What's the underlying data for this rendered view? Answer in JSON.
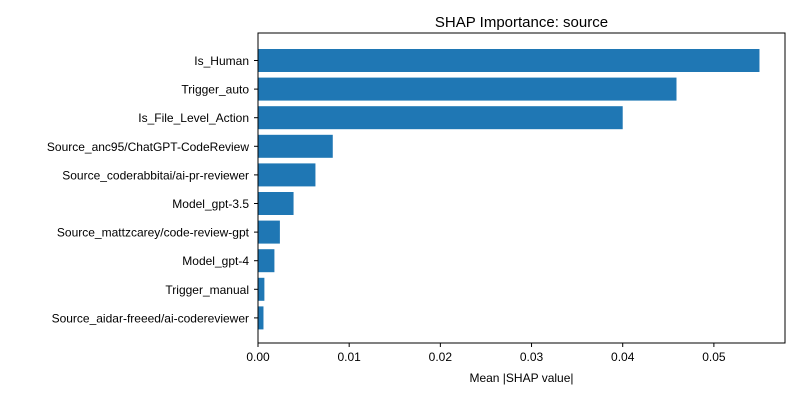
{
  "chart_data": {
    "type": "bar",
    "orientation": "horizontal",
    "title": "SHAP Importance: source",
    "xlabel": "Mean |SHAP value|",
    "ylabel": "",
    "xlim": [
      0,
      0.0578
    ],
    "xticks": [
      0.0,
      0.01,
      0.02,
      0.03,
      0.04,
      0.05
    ],
    "xtick_labels": [
      "0.00",
      "0.01",
      "0.02",
      "0.03",
      "0.04",
      "0.05"
    ],
    "grid": false,
    "bar_color": "#1f77b4",
    "categories": [
      "Is_Human",
      "Trigger_auto",
      "Is_File_Level_Action",
      "Source_anc95/ChatGPT-CodeReview",
      "Source_coderabbitai/ai-pr-reviewer",
      "Model_gpt-3.5",
      "Source_mattzcarey/code-review-gpt",
      "Model_gpt-4",
      "Trigger_manual",
      "Source_aidar-freeed/ai-codereviewer"
    ],
    "values": [
      0.055,
      0.0459,
      0.04,
      0.0082,
      0.0063,
      0.0039,
      0.0024,
      0.0018,
      0.0007,
      0.0006
    ]
  }
}
